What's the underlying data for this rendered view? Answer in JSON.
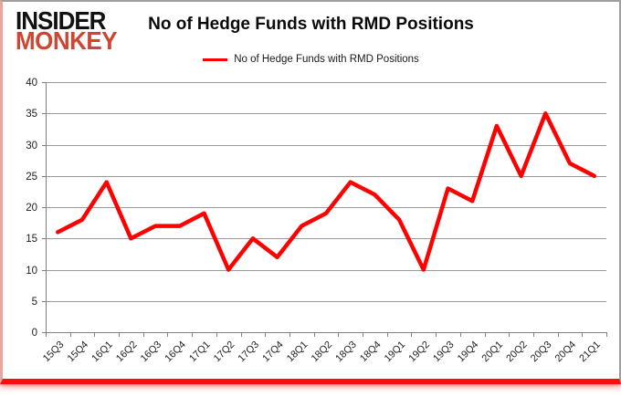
{
  "logo": {
    "line1": "INSIDER",
    "line2": "MONKEY",
    "line1_color": "#111111",
    "line2_color": "#ce4631"
  },
  "header": {
    "title": "No of Hedge Funds with RMD Positions"
  },
  "legend": {
    "label": "No of Hedge Funds with RMD Positions",
    "line_color": "#ff0000"
  },
  "chart_data": {
    "type": "line",
    "title": "No of Hedge Funds with RMD Positions",
    "categories": [
      "15Q3",
      "15Q4",
      "16Q1",
      "16Q2",
      "16Q3",
      "16Q4",
      "17Q1",
      "17Q2",
      "17Q3",
      "17Q4",
      "18Q1",
      "18Q2",
      "18Q3",
      "18Q4",
      "19Q1",
      "19Q2",
      "19Q3",
      "19Q4",
      "20Q1",
      "20Q2",
      "20Q3",
      "20Q4",
      "21Q1"
    ],
    "series": [
      {
        "name": "No of Hedge Funds with RMD Positions",
        "color": "#ff0000",
        "values": [
          16,
          18,
          24,
          15,
          17,
          17,
          19,
          10,
          15,
          12,
          17,
          19,
          24,
          22,
          18,
          10,
          23,
          21,
          33,
          25,
          35,
          27,
          25
        ]
      }
    ],
    "xlabel": "",
    "ylabel": "",
    "ylim": [
      0,
      40
    ],
    "ytick_step": 5,
    "yticks": [
      0,
      5,
      10,
      15,
      20,
      25,
      30,
      35,
      40
    ],
    "grid": true,
    "legend_position": "top",
    "gridline_color": "#9a9a9a",
    "axis_color": "#808080",
    "label_color": "#1f1f1f"
  }
}
